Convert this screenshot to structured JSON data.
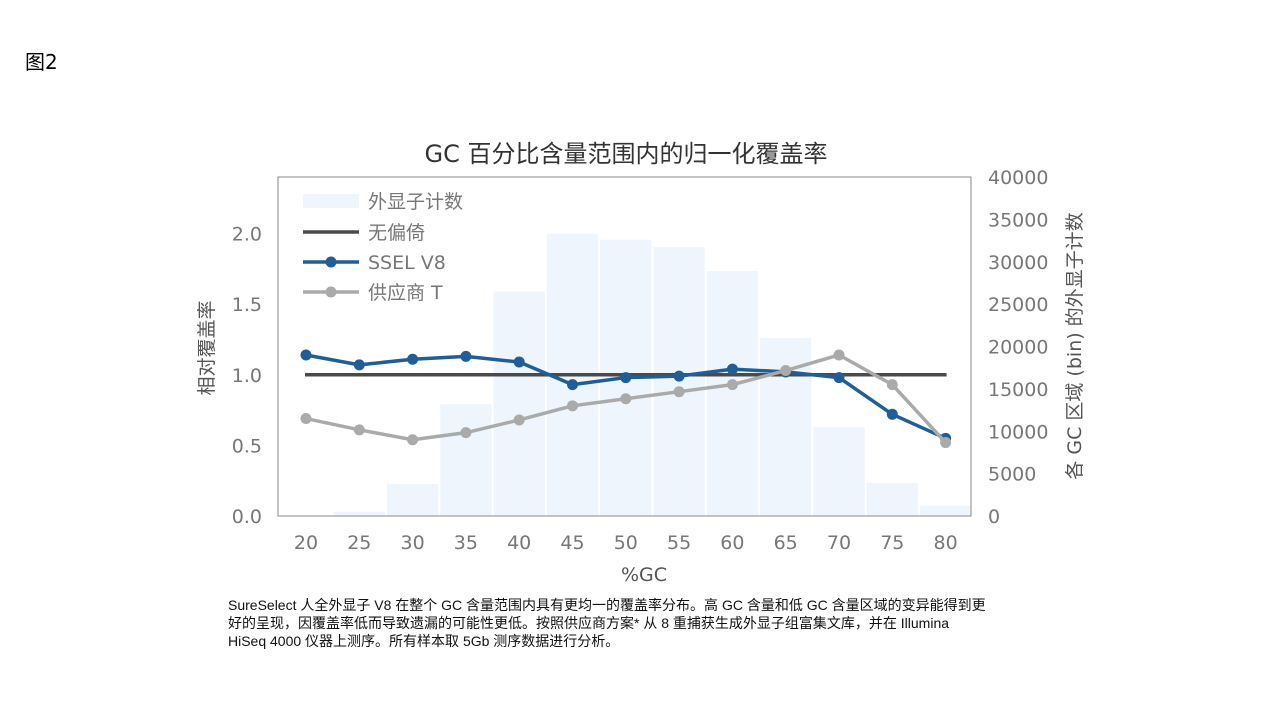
{
  "figure_label": "图2",
  "caption_lines": [
    "SureSelect 人全外显子 V8 在整个 GC 含量范围内具有更均一的覆盖率分布。高 GC 含量和低 GC 含量区域的变异能得到更",
    "好的呈现，因覆盖率低而导致遗漏的可能性更低。按照供应商方案* 从 8 重捕获生成外显子组富集文库，并在 Illumina",
    "HiSeq 4000 仪器上测序。所有样本取 5Gb 测序数据进行分析。"
  ],
  "chart_data": {
    "type": "line",
    "title": "GC 百分比含量范围内的归一化覆盖率",
    "xlabel": "%GC",
    "ylabel": "相对覆盖率",
    "y2label": "各 GC 区域 (bin) 的外显子计数",
    "x": [
      20,
      25,
      30,
      35,
      40,
      45,
      50,
      55,
      60,
      65,
      70,
      75,
      80
    ],
    "ylim": [
      0,
      2.4
    ],
    "y_ticks": [
      "0.0",
      "0.5",
      "1.0",
      "1.5",
      "2.0"
    ],
    "y2lim": [
      0,
      40000
    ],
    "y2_ticks": [
      "0",
      "5000",
      "10000",
      "15000",
      "20000",
      "25000",
      "30000",
      "35000",
      "40000"
    ],
    "legend_position": "top-left",
    "grid": false,
    "bars": {
      "name": "外显子计数",
      "axis": "right",
      "color": "#eef5fc",
      "values": [
        0,
        500,
        3800,
        13200,
        26500,
        33300,
        32600,
        31700,
        28900,
        21000,
        10500,
        3900,
        1200
      ]
    },
    "series": [
      {
        "name": "无偏倚",
        "color": "#4a4a4a",
        "marker": false,
        "values": [
          1.0,
          1.0,
          1.0,
          1.0,
          1.0,
          1.0,
          1.0,
          1.0,
          1.0,
          1.0,
          1.0,
          1.0,
          1.0
        ]
      },
      {
        "name": "SSEL V8",
        "color": "#1f5e96",
        "marker": true,
        "values": [
          1.14,
          1.07,
          1.11,
          1.13,
          1.09,
          0.93,
          0.98,
          0.99,
          1.04,
          1.02,
          0.98,
          0.72,
          0.55
        ]
      },
      {
        "name": "供应商 T",
        "color": "#aaaaaa",
        "marker": true,
        "values": [
          0.69,
          0.61,
          0.54,
          0.59,
          0.68,
          0.78,
          0.83,
          0.88,
          0.93,
          1.03,
          1.14,
          0.93,
          0.52
        ]
      }
    ]
  }
}
